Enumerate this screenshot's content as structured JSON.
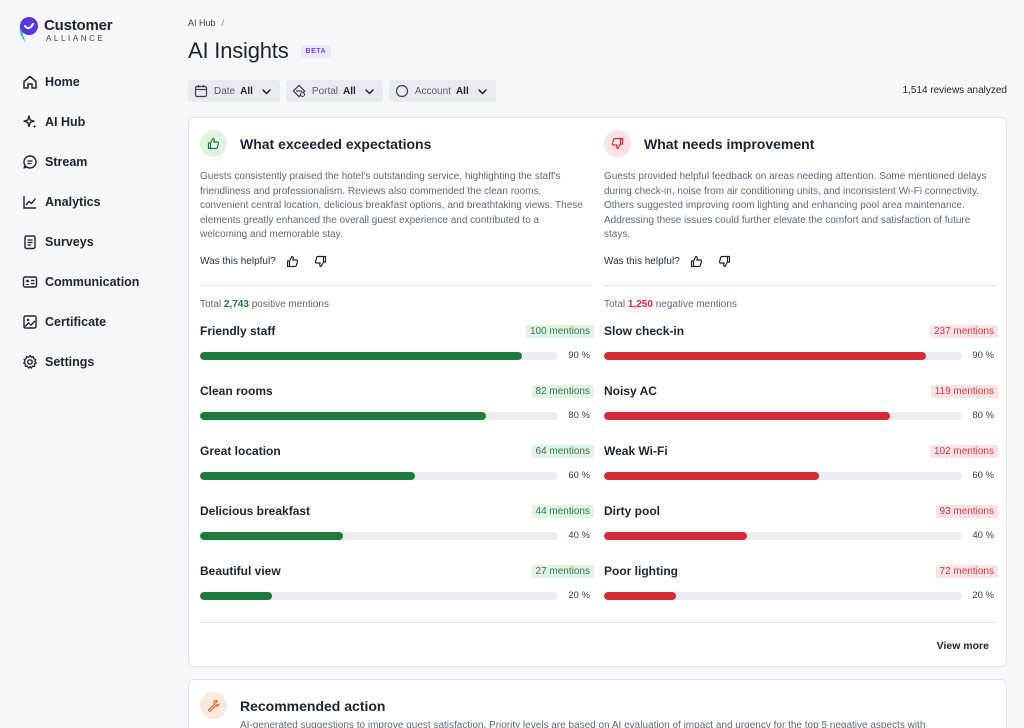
{
  "brand": {
    "line1": "Customer",
    "line2": "ALLIANCE",
    "colors": {
      "purple": "#5b35e0",
      "teal": "#3cc6c7"
    }
  },
  "sidebar": {
    "items": [
      {
        "label": "Home",
        "icon": "home-icon"
      },
      {
        "label": "AI Hub",
        "icon": "sparkles-icon"
      },
      {
        "label": "Stream",
        "icon": "chat-icon"
      },
      {
        "label": "Analytics",
        "icon": "chart-line-icon"
      },
      {
        "label": "Surveys",
        "icon": "clipboard-icon"
      },
      {
        "label": "Communication",
        "icon": "id-card-icon"
      },
      {
        "label": "Certificate",
        "icon": "image-icon"
      },
      {
        "label": "Settings",
        "icon": "gear-icon"
      }
    ]
  },
  "header": {
    "breadcrumb": "AI Hub",
    "breadcrumb_sep": "/",
    "title": "AI Insights",
    "badge": "BETA"
  },
  "filters": [
    {
      "label": "Date",
      "value": "All",
      "icon": "calendar-icon"
    },
    {
      "label": "Portal",
      "value": "All",
      "icon": "portal-icon"
    },
    {
      "label": "Account",
      "value": "All",
      "icon": "circle-icon"
    }
  ],
  "reviews_analyzed": "1,514 reviews analyzed",
  "positive": {
    "title": "What exceeded expectations",
    "summary": "Guests consistently praised the hotel's outstanding service, highlighting the staff's friendliness and professionalism. Reviews also commended the clean rooms, convenient central location, delicious breakfast options, and breathtaking views. These elements greatly enhanced the overall guest experience and contributed to a welcoming and memorable stay.",
    "helpful_label": "Was this helpful?",
    "total_prefix": "Total",
    "total_count": "2,743",
    "total_suffix": "positive mentions",
    "color": "#1e7a3d",
    "items": [
      {
        "name": "Friendly staff",
        "mentions": "100 mentions",
        "percent": 90,
        "percent_label": "90 %"
      },
      {
        "name": "Clean rooms",
        "mentions": "82 mentions",
        "percent": 80,
        "percent_label": "80 %"
      },
      {
        "name": "Great location",
        "mentions": "64 mentions",
        "percent": 60,
        "percent_label": "60 %"
      },
      {
        "name": "Delicious breakfast",
        "mentions": "44 mentions",
        "percent": 40,
        "percent_label": "40 %"
      },
      {
        "name": "Beautiful view",
        "mentions": "27 mentions",
        "percent": 20,
        "percent_label": "20 %"
      }
    ]
  },
  "negative": {
    "title": "What needs improvement",
    "summary": "Guests provided helpful feedback on areas needing attention. Some mentioned delays during check-in, noise from air conditioning units, and inconsistent Wi-Fi connectivity. Others suggested improving room lighting and enhancing pool area maintenance. Addressing these issues could further elevate the comfort and satisfaction of future stays.",
    "helpful_label": "Was this helpful?",
    "total_prefix": "Total",
    "total_count": "1,250",
    "total_suffix": "negative mentions",
    "color": "#d22b35",
    "items": [
      {
        "name": "Slow check-in",
        "mentions": "237 mentions",
        "percent": 90,
        "percent_label": "90 %"
      },
      {
        "name": "Noisy AC",
        "mentions": "119 mentions",
        "percent": 80,
        "percent_label": "80 %"
      },
      {
        "name": "Weak Wi-Fi",
        "mentions": "102 mentions",
        "percent": 60,
        "percent_label": "60 %"
      },
      {
        "name": "Dirty pool",
        "mentions": "93 mentions",
        "percent": 40,
        "percent_label": "40 %"
      },
      {
        "name": "Poor lighting",
        "mentions": "72 mentions",
        "percent": 20,
        "percent_label": "20 %"
      }
    ]
  },
  "view_more": "View more",
  "recommended": {
    "title": "Recommended action",
    "description": "AI-generated suggestions to improve guest satisfaction. Priority levels are based on AI evaluation of impact and urgency for the top 5 negative aspects with"
  }
}
